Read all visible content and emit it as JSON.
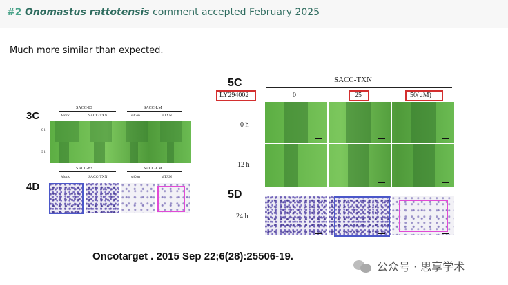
{
  "header": {
    "number": "#2",
    "species": "Onomastus rattotensis",
    "status": "comment accepted February 2025"
  },
  "comment": {
    "text": "Much more similar than expected."
  },
  "figure_left": {
    "label_3c": "3C",
    "label_4d": "4D",
    "group1": "SACC-83",
    "group2": "SACC-LM",
    "cols": [
      "Mock",
      "SACC-TXN",
      "siCon",
      "siTXN"
    ],
    "rows": [
      "0 h",
      "9 h"
    ]
  },
  "figure_right": {
    "label_5c": "5C",
    "label_5d": "5D",
    "title": "SACC-TXN",
    "inhibitor": "LY294002",
    "doses": [
      "0",
      "25",
      "50(μM)"
    ],
    "rows": [
      "0 h",
      "12 h"
    ],
    "row_5d": "24 h"
  },
  "citation": "Oncotarget . 2015 Sep 22;6(28):25506-19.",
  "watermark": "公众号 · 思享学术",
  "colors": {
    "accent": "#4aa38a",
    "blue_box": "#4b57c9",
    "magenta_box": "#e14ad6",
    "red_box": "#d32f2f"
  }
}
